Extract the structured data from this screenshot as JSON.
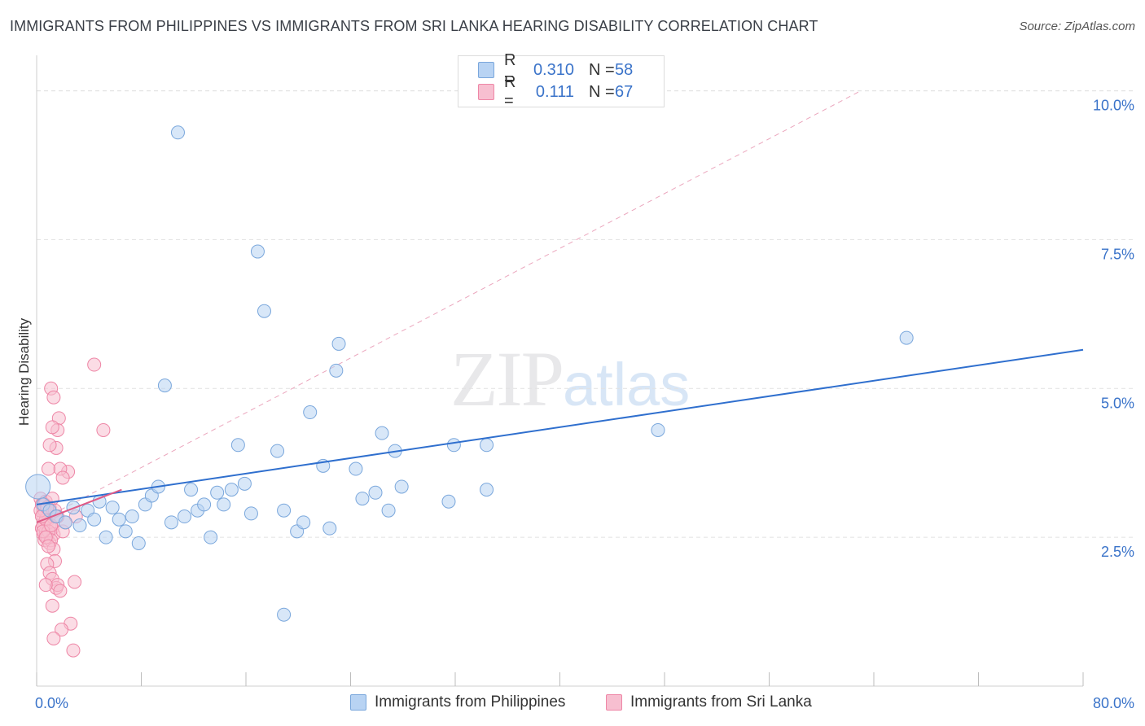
{
  "header": {
    "title": "IMMIGRANTS FROM PHILIPPINES VS IMMIGRANTS FROM SRI LANKA HEARING DISABILITY CORRELATION CHART",
    "source": "Source: ZipAtlas.com"
  },
  "watermark": {
    "zip": "ZIP",
    "atlas": "atlas"
  },
  "legend": {
    "rows": [
      {
        "r_label": "R =",
        "r_value": "0.310",
        "n_label": "N =",
        "n_value": "58"
      },
      {
        "r_label": "R =",
        "r_value": "0.111",
        "n_label": "N =",
        "n_value": "67"
      }
    ]
  },
  "bottom_legend": {
    "series1": "Immigrants from Philippines",
    "series2": "Immigrants from Sri Lanka"
  },
  "colors": {
    "blue_fill": "#b8d3f3",
    "blue_stroke": "#7aa7dc",
    "blue_line": "#2f6fce",
    "pink_fill": "#f7bfd0",
    "pink_stroke": "#ee86a6",
    "pink_line": "#e05a86",
    "grid": "#e1e1e1",
    "tick_label": "#3a73c9"
  },
  "chart_data": {
    "type": "scatter",
    "ylabel": "Hearing Disability",
    "xlim": [
      0,
      80
    ],
    "ylim": [
      0,
      10.5
    ],
    "x_tick_labels": [
      "0.0%",
      "80.0%"
    ],
    "y_ticks": [
      2.5,
      5.0,
      7.5,
      10.0
    ],
    "y_tick_labels": [
      "2.5%",
      "5.0%",
      "7.5%",
      "10.0%"
    ],
    "grid": true,
    "legend_placement": "top-center",
    "series": [
      {
        "name": "Immigrants from Philippines",
        "r": 0.31,
        "n": 58,
        "trend": {
          "x": [
            0,
            80
          ],
          "y": [
            3.05,
            5.65
          ]
        },
        "points": [
          [
            0.1,
            3.35
          ],
          [
            0.5,
            3.05
          ],
          [
            1.0,
            2.95
          ],
          [
            1.5,
            2.85
          ],
          [
            2.2,
            2.75
          ],
          [
            2.8,
            3.0
          ],
          [
            3.3,
            2.7
          ],
          [
            3.9,
            2.95
          ],
          [
            4.4,
            2.8
          ],
          [
            4.8,
            3.1
          ],
          [
            5.3,
            2.5
          ],
          [
            5.8,
            3.0
          ],
          [
            6.3,
            2.8
          ],
          [
            6.8,
            2.6
          ],
          [
            7.3,
            2.85
          ],
          [
            7.8,
            2.4
          ],
          [
            8.3,
            3.05
          ],
          [
            8.8,
            3.2
          ],
          [
            9.3,
            3.35
          ],
          [
            9.8,
            5.05
          ],
          [
            10.3,
            2.75
          ],
          [
            10.8,
            9.3
          ],
          [
            11.3,
            2.85
          ],
          [
            11.8,
            3.3
          ],
          [
            12.3,
            2.95
          ],
          [
            12.8,
            3.05
          ],
          [
            13.3,
            2.5
          ],
          [
            13.8,
            3.25
          ],
          [
            14.3,
            3.05
          ],
          [
            14.9,
            3.3
          ],
          [
            15.4,
            4.05
          ],
          [
            15.9,
            3.4
          ],
          [
            16.4,
            2.9
          ],
          [
            16.9,
            7.3
          ],
          [
            17.4,
            6.3
          ],
          [
            18.4,
            3.95
          ],
          [
            18.9,
            2.95
          ],
          [
            19.9,
            2.6
          ],
          [
            20.4,
            2.75
          ],
          [
            20.9,
            4.6
          ],
          [
            21.9,
            3.7
          ],
          [
            22.4,
            2.65
          ],
          [
            22.9,
            5.3
          ],
          [
            23.1,
            5.75
          ],
          [
            24.4,
            3.65
          ],
          [
            24.9,
            3.15
          ],
          [
            25.9,
            3.25
          ],
          [
            26.4,
            4.25
          ],
          [
            26.9,
            2.95
          ],
          [
            27.4,
            3.95
          ],
          [
            27.9,
            3.35
          ],
          [
            31.5,
            3.1
          ],
          [
            31.9,
            4.05
          ],
          [
            34.4,
            4.05
          ],
          [
            34.4,
            3.3
          ],
          [
            47.5,
            4.3
          ],
          [
            66.5,
            5.85
          ],
          [
            18.9,
            1.2
          ]
        ]
      },
      {
        "name": "Immigrants from Sri Lanka",
        "r": 0.111,
        "n": 67,
        "trend": {
          "x": [
            0,
            6.5
          ],
          "y": [
            2.75,
            3.3
          ]
        },
        "trend_dashed": {
          "x": [
            0,
            63
          ],
          "y": [
            2.75,
            10.0
          ]
        },
        "points": [
          [
            0.3,
            3.15
          ],
          [
            0.4,
            3.05
          ],
          [
            0.5,
            2.95
          ],
          [
            0.5,
            2.85
          ],
          [
            0.6,
            2.75
          ],
          [
            0.4,
            2.65
          ],
          [
            0.5,
            2.55
          ],
          [
            0.6,
            2.45
          ],
          [
            0.7,
            3.1
          ],
          [
            0.8,
            2.9
          ],
          [
            0.9,
            2.8
          ],
          [
            1.0,
            2.7
          ],
          [
            0.6,
            3.05
          ],
          [
            0.7,
            2.6
          ],
          [
            0.8,
            2.5
          ],
          [
            1.0,
            3.0
          ],
          [
            1.1,
            2.9
          ],
          [
            1.2,
            2.65
          ],
          [
            1.3,
            2.55
          ],
          [
            1.4,
            2.85
          ],
          [
            0.5,
            2.7
          ],
          [
            0.6,
            2.95
          ],
          [
            0.7,
            2.8
          ],
          [
            0.9,
            2.6
          ],
          [
            1.0,
            2.4
          ],
          [
            1.1,
            2.45
          ],
          [
            1.2,
            3.15
          ],
          [
            1.3,
            2.3
          ],
          [
            1.4,
            2.1
          ],
          [
            0.8,
            2.05
          ],
          [
            1.0,
            1.9
          ],
          [
            1.2,
            1.8
          ],
          [
            1.5,
            1.65
          ],
          [
            1.6,
            1.7
          ],
          [
            0.7,
            1.7
          ],
          [
            1.2,
            1.35
          ],
          [
            1.8,
            1.6
          ],
          [
            2.0,
            2.6
          ],
          [
            2.2,
            2.75
          ],
          [
            2.4,
            3.6
          ],
          [
            2.6,
            1.05
          ],
          [
            2.8,
            0.6
          ],
          [
            2.9,
            1.75
          ],
          [
            3.0,
            2.85
          ],
          [
            1.5,
            4.0
          ],
          [
            1.7,
            4.5
          ],
          [
            1.8,
            3.65
          ],
          [
            2.0,
            3.5
          ],
          [
            1.1,
            5.0
          ],
          [
            1.3,
            4.85
          ],
          [
            1.6,
            4.3
          ],
          [
            1.0,
            4.05
          ],
          [
            0.9,
            3.65
          ],
          [
            1.2,
            4.35
          ],
          [
            1.9,
            0.95
          ],
          [
            1.3,
            0.8
          ],
          [
            5.1,
            4.3
          ],
          [
            4.4,
            5.4
          ],
          [
            0.3,
            2.95
          ],
          [
            0.4,
            2.85
          ],
          [
            0.5,
            2.6
          ],
          [
            1.1,
            2.7
          ],
          [
            1.4,
            2.95
          ],
          [
            0.8,
            3.0
          ],
          [
            0.7,
            2.5
          ],
          [
            1.6,
            2.85
          ],
          [
            0.9,
            2.35
          ]
        ]
      }
    ]
  }
}
